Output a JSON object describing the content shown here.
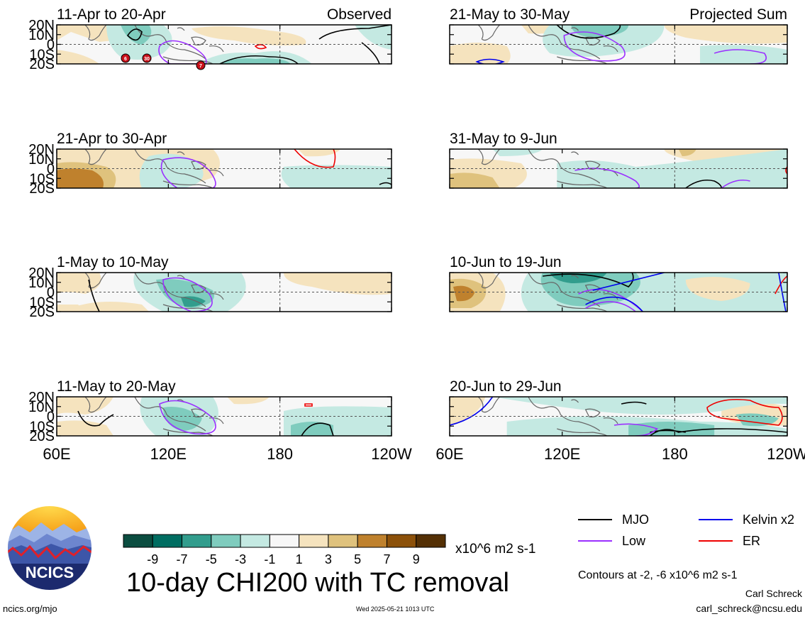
{
  "panels": [
    {
      "col": 0,
      "row": 0,
      "label": "11-Apr to 20-Apr",
      "corner": "Observed",
      "tc_markers": [
        "6",
        "30",
        "7"
      ]
    },
    {
      "col": 0,
      "row": 1,
      "label": "21-Apr to 30-Apr",
      "corner": ""
    },
    {
      "col": 0,
      "row": 2,
      "label": "1-May to 10-May",
      "corner": ""
    },
    {
      "col": 0,
      "row": 3,
      "label": "11-May to 20-May",
      "corner": ""
    },
    {
      "col": 1,
      "row": 0,
      "label": "21-May to 30-May",
      "corner": "Projected Sum"
    },
    {
      "col": 1,
      "row": 1,
      "label": "31-May to 9-Jun",
      "corner": ""
    },
    {
      "col": 1,
      "row": 2,
      "label": "10-Jun to 19-Jun",
      "corner": ""
    },
    {
      "col": 1,
      "row": 3,
      "label": "20-Jun to 29-Jun",
      "corner": ""
    }
  ],
  "lat_labels": [
    "20N",
    "10N",
    "0",
    "10S",
    "20S"
  ],
  "lon_labels": [
    "60E",
    "120E",
    "180",
    "120W"
  ],
  "colorbar": {
    "colors": [
      "#0b4d40",
      "#006d61",
      "#329d8d",
      "#7fccbe",
      "#c4e9e2",
      "#f7f7f7",
      "#f5e3be",
      "#dfc27d",
      "#bf812d",
      "#8c510a",
      "#543005"
    ],
    "tick_labels": [
      "-9",
      "-7",
      "-5",
      "-3",
      "-1",
      "1",
      "3",
      "5",
      "7",
      "9"
    ],
    "units": "x10^6 m2 s-1"
  },
  "legend": [
    {
      "name": "MJO",
      "color": "#000000"
    },
    {
      "name": "Kelvin x2",
      "color": "#0000ee"
    },
    {
      "name": "Low",
      "color": "#9b30ff"
    },
    {
      "name": "ER",
      "color": "#ee0000"
    }
  ],
  "footer": {
    "title": "10-day CHI200 with TC removal",
    "contours_note": "Contours at -2, -6 x10^6 m2 s-1",
    "author": "Carl Schreck",
    "email": "carl_schreck@ncsu.edu",
    "site": "ncics.org/mjo",
    "stamp": "Wed 2025-05-21 1013 UTC",
    "logo_text": "NCICS"
  }
}
